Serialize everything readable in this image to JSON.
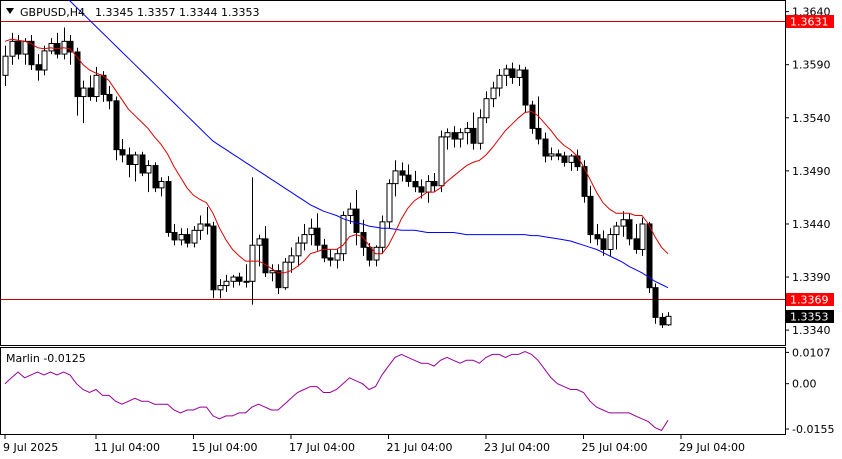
{
  "header": {
    "symbol": "GBPUSD,H4",
    "ohlc": "1.3345 1.3357 1.3344 1.3353"
  },
  "indicator": {
    "label": "Marlin -0.0125"
  },
  "colors": {
    "price_line": "#cc0000",
    "slow_ma": "#0000ff",
    "fast_ma": "#dd0000",
    "oscillator": "#990099",
    "candle": "#000000",
    "tag_red": "#ff0000",
    "tag_black": "#000000"
  },
  "chart_data": [
    {
      "type": "candlestick",
      "title": "GBPUSD,H4",
      "y_ticks": [
        "1.3640",
        "1.3590",
        "1.3540",
        "1.3490",
        "1.3440",
        "1.3390",
        "1.3340"
      ],
      "ylim": [
        1.3326,
        1.365
      ],
      "x_ticks": [
        "9 Jul 2025",
        "11 Jul 04:00",
        "15 Jul 04:00",
        "17 Jul 04:00",
        "21 Jul 04:00",
        "23 Jul 04:00",
        "25 Jul 04:00",
        "29 Jul 04:00"
      ],
      "horizontal_lines": [
        {
          "value": 1.3631,
          "label": "1.3631",
          "color": "red"
        },
        {
          "value": 1.3369,
          "label": "1.3369",
          "color": "red"
        }
      ],
      "current_price": {
        "value": 1.3353,
        "label": "1.3353"
      },
      "candles": [
        [
          1.358,
          1.3608,
          1.357,
          1.3598
        ],
        [
          1.3598,
          1.362,
          1.359,
          1.3612
        ],
        [
          1.3612,
          1.3618,
          1.3595,
          1.36
        ],
        [
          1.36,
          1.3615,
          1.359,
          1.3612
        ],
        [
          1.3612,
          1.3618,
          1.3585,
          1.359
        ],
        [
          1.359,
          1.36,
          1.3575,
          1.3585
        ],
        [
          1.3585,
          1.3608,
          1.358,
          1.3603
        ],
        [
          1.3603,
          1.3615,
          1.36,
          1.361
        ],
        [
          1.361,
          1.362,
          1.3596,
          1.36
        ],
        [
          1.36,
          1.3625,
          1.3595,
          1.3612
        ],
        [
          1.3612,
          1.3618,
          1.359,
          1.3602
        ],
        [
          1.3602,
          1.3606,
          1.3542,
          1.356
        ],
        [
          1.356,
          1.3575,
          1.3535,
          1.3568
        ],
        [
          1.3568,
          1.358,
          1.3556,
          1.356
        ],
        [
          1.356,
          1.3588,
          1.3555,
          1.358
        ],
        [
          1.358,
          1.3584,
          1.3555,
          1.3562
        ],
        [
          1.3562,
          1.357,
          1.3548,
          1.3556
        ],
        [
          1.3556,
          1.356,
          1.35,
          1.351
        ],
        [
          1.351,
          1.352,
          1.3498,
          1.3505
        ],
        [
          1.3505,
          1.3512,
          1.3484,
          1.3496
        ],
        [
          1.3496,
          1.3508,
          1.348,
          1.3505
        ],
        [
          1.3505,
          1.3508,
          1.3485,
          1.3488
        ],
        [
          1.3488,
          1.35,
          1.347,
          1.3495
        ],
        [
          1.3495,
          1.3498,
          1.347,
          1.3474
        ],
        [
          1.3474,
          1.3484,
          1.3466,
          1.348
        ],
        [
          1.348,
          1.3485,
          1.3428,
          1.3432
        ],
        [
          1.3432,
          1.344,
          1.342,
          1.3425
        ],
        [
          1.3425,
          1.3436,
          1.342,
          1.343
        ],
        [
          1.343,
          1.3436,
          1.3418,
          1.3422
        ],
        [
          1.3422,
          1.3438,
          1.3418,
          1.3434
        ],
        [
          1.3434,
          1.3448,
          1.3425,
          1.344
        ],
        [
          1.344,
          1.3456,
          1.343,
          1.3438
        ],
        [
          1.3438,
          1.3442,
          1.337,
          1.3378
        ],
        [
          1.3378,
          1.3388,
          1.337,
          1.3382
        ],
        [
          1.3382,
          1.3392,
          1.3376,
          1.3386
        ],
        [
          1.3386,
          1.3392,
          1.338,
          1.339
        ],
        [
          1.339,
          1.3394,
          1.3382,
          1.3386
        ],
        [
          1.3386,
          1.3402,
          1.338,
          1.3386
        ],
        [
          1.3386,
          1.3484,
          1.3364,
          1.342
        ],
        [
          1.342,
          1.343,
          1.34,
          1.3426
        ],
        [
          1.3426,
          1.3438,
          1.339,
          1.3394
        ],
        [
          1.3394,
          1.3402,
          1.3386,
          1.3396
        ],
        [
          1.3396,
          1.3402,
          1.3374,
          1.338
        ],
        [
          1.338,
          1.3408,
          1.3378,
          1.3404
        ],
        [
          1.3404,
          1.3418,
          1.3394,
          1.341
        ],
        [
          1.341,
          1.3428,
          1.34,
          1.3422
        ],
        [
          1.3422,
          1.344,
          1.3415,
          1.343
        ],
        [
          1.343,
          1.3445,
          1.342,
          1.3436
        ],
        [
          1.3436,
          1.345,
          1.3415,
          1.342
        ],
        [
          1.342,
          1.3426,
          1.3404,
          1.3408
        ],
        [
          1.3408,
          1.3416,
          1.34,
          1.3406
        ],
        [
          1.3406,
          1.3416,
          1.3398,
          1.3412
        ],
        [
          1.3412,
          1.3452,
          1.3405,
          1.3448
        ],
        [
          1.3448,
          1.346,
          1.344,
          1.3454
        ],
        [
          1.3454,
          1.3472,
          1.342,
          1.3432
        ],
        [
          1.3432,
          1.3444,
          1.341,
          1.3418
        ],
        [
          1.3418,
          1.3422,
          1.34,
          1.3406
        ],
        [
          1.3406,
          1.342,
          1.34,
          1.3418
        ],
        [
          1.3418,
          1.3448,
          1.3412,
          1.3442
        ],
        [
          1.3442,
          1.3482,
          1.3436,
          1.3478
        ],
        [
          1.3478,
          1.35,
          1.3466,
          1.349
        ],
        [
          1.349,
          1.3498,
          1.348,
          1.3486
        ],
        [
          1.3486,
          1.3496,
          1.3475,
          1.348
        ],
        [
          1.348,
          1.349,
          1.347,
          1.3475
        ],
        [
          1.3475,
          1.3482,
          1.3464,
          1.347
        ],
        [
          1.347,
          1.3486,
          1.346,
          1.348
        ],
        [
          1.348,
          1.3488,
          1.347,
          1.3476
        ],
        [
          1.3476,
          1.3528,
          1.347,
          1.3522
        ],
        [
          1.3522,
          1.353,
          1.351,
          1.3526
        ],
        [
          1.3526,
          1.3532,
          1.3512,
          1.352
        ],
        [
          1.352,
          1.353,
          1.3512,
          1.3526
        ],
        [
          1.3526,
          1.3536,
          1.3515,
          1.353
        ],
        [
          1.353,
          1.3545,
          1.351,
          1.3516
        ],
        [
          1.3516,
          1.3548,
          1.351,
          1.354
        ],
        [
          1.354,
          1.3565,
          1.3535,
          1.3558
        ],
        [
          1.3558,
          1.3574,
          1.355,
          1.3568
        ],
        [
          1.3568,
          1.3586,
          1.356,
          1.358
        ],
        [
          1.358,
          1.359,
          1.357,
          1.3586
        ],
        [
          1.3586,
          1.3592,
          1.3572,
          1.3578
        ],
        [
          1.3578,
          1.359,
          1.357,
          1.3585
        ],
        [
          1.3585,
          1.3588,
          1.3545,
          1.3552
        ],
        [
          1.3552,
          1.3556,
          1.3525,
          1.353
        ],
        [
          1.353,
          1.356,
          1.3515,
          1.352
        ],
        [
          1.352,
          1.3526,
          1.3498,
          1.3504
        ],
        [
          1.3504,
          1.3512,
          1.35,
          1.3506
        ],
        [
          1.3506,
          1.351,
          1.35,
          1.3504
        ],
        [
          1.3504,
          1.3508,
          1.3494,
          1.3498
        ],
        [
          1.3498,
          1.3506,
          1.349,
          1.3504
        ],
        [
          1.3504,
          1.351,
          1.349,
          1.3494
        ],
        [
          1.3494,
          1.35,
          1.346,
          1.3466
        ],
        [
          1.3466,
          1.3476,
          1.3422,
          1.343
        ],
        [
          1.343,
          1.344,
          1.342,
          1.3426
        ],
        [
          1.3426,
          1.3434,
          1.341,
          1.3416
        ],
        [
          1.3416,
          1.3436,
          1.341,
          1.343
        ],
        [
          1.343,
          1.3442,
          1.3416,
          1.3438
        ],
        [
          1.3438,
          1.3452,
          1.3428,
          1.3444
        ],
        [
          1.3444,
          1.345,
          1.342,
          1.3426
        ],
        [
          1.3426,
          1.344,
          1.3412,
          1.3416
        ],
        [
          1.3416,
          1.3446,
          1.341,
          1.344
        ],
        [
          1.344,
          1.3442,
          1.3375,
          1.338
        ],
        [
          1.338,
          1.3384,
          1.3346,
          1.3352
        ],
        [
          1.3352,
          1.3356,
          1.3342,
          1.3345
        ],
        [
          1.3345,
          1.3357,
          1.3344,
          1.3353
        ]
      ],
      "fast_ma": [
        1.3612,
        1.3614,
        1.3613,
        1.3612,
        1.361,
        1.3606,
        1.3605,
        1.3606,
        1.3605,
        1.3606,
        1.3605,
        1.3598,
        1.359,
        1.3585,
        1.3582,
        1.358,
        1.3575,
        1.3566,
        1.3557,
        1.3548,
        1.3542,
        1.3536,
        1.353,
        1.3522,
        1.3515,
        1.3506,
        1.3494,
        1.3484,
        1.3474,
        1.3467,
        1.3463,
        1.346,
        1.345,
        1.3436,
        1.3425,
        1.3416,
        1.341,
        1.3405,
        1.3405,
        1.3405,
        1.3402,
        1.3398,
        1.3394,
        1.3394,
        1.3396,
        1.34,
        1.3405,
        1.3412,
        1.3414,
        1.3416,
        1.3416,
        1.3416,
        1.342,
        1.3428,
        1.343,
        1.3428,
        1.342,
        1.3412,
        1.3412,
        1.342,
        1.3432,
        1.3445,
        1.3455,
        1.3462,
        1.3466,
        1.347,
        1.347,
        1.3474,
        1.348,
        1.3485,
        1.349,
        1.3495,
        1.3498,
        1.35,
        1.3505,
        1.3512,
        1.352,
        1.3528,
        1.3534,
        1.354,
        1.3545,
        1.3546,
        1.3542,
        1.3535,
        1.3528,
        1.352,
        1.3514,
        1.351,
        1.3504,
        1.3494,
        1.3482,
        1.347,
        1.346,
        1.3454,
        1.345,
        1.345,
        1.345,
        1.3448,
        1.3448,
        1.344,
        1.3428,
        1.3418,
        1.3412
      ],
      "slow_ma": [
        1.368,
        1.3678,
        1.3676,
        1.3674,
        1.3671,
        1.3668,
        1.3665,
        1.3662,
        1.3658,
        1.3654,
        1.365,
        1.3644,
        1.3638,
        1.3632,
        1.3626,
        1.362,
        1.3614,
        1.3608,
        1.3602,
        1.3596,
        1.359,
        1.3584,
        1.3578,
        1.3572,
        1.3566,
        1.356,
        1.3554,
        1.3548,
        1.3542,
        1.3536,
        1.353,
        1.3524,
        1.3518,
        1.3514,
        1.351,
        1.3506,
        1.3502,
        1.3498,
        1.3494,
        1.349,
        1.3486,
        1.3482,
        1.3478,
        1.3474,
        1.347,
        1.3466,
        1.3462,
        1.3458,
        1.3455,
        1.3452,
        1.345,
        1.3448,
        1.3445,
        1.3443,
        1.3441,
        1.344,
        1.3438,
        1.3437,
        1.3436,
        1.3436,
        1.3435,
        1.3434,
        1.3434,
        1.3434,
        1.3433,
        1.3432,
        1.3432,
        1.3432,
        1.3432,
        1.3432,
        1.3431,
        1.343,
        1.343,
        1.343,
        1.343,
        1.343,
        1.343,
        1.343,
        1.343,
        1.343,
        1.343,
        1.3429,
        1.3429,
        1.3428,
        1.3427,
        1.3426,
        1.3425,
        1.3424,
        1.3422,
        1.342,
        1.3418,
        1.3416,
        1.3413,
        1.341,
        1.3407,
        1.3404,
        1.34,
        1.3397,
        1.3394,
        1.339,
        1.3386,
        1.3383,
        1.338
      ],
      "oscillator": {
        "name": "Marlin",
        "value_label": "-0.0125",
        "y_ticks": [
          "0.0107",
          "0.00",
          "-0.0155"
        ],
        "ylim": [
          -0.0172,
          0.0122
        ],
        "values": [
          0.0,
          0.002,
          0.004,
          0.002,
          0.003,
          0.004,
          0.003,
          0.004,
          0.003,
          0.004,
          0.003,
          0.0,
          -0.002,
          -0.003,
          -0.002,
          -0.004,
          -0.004,
          -0.006,
          -0.007,
          -0.006,
          -0.005,
          -0.006,
          -0.006,
          -0.007,
          -0.007,
          -0.007,
          -0.009,
          -0.01,
          -0.009,
          -0.009,
          -0.008,
          -0.008,
          -0.011,
          -0.012,
          -0.011,
          -0.011,
          -0.01,
          -0.01,
          -0.008,
          -0.007,
          -0.008,
          -0.009,
          -0.009,
          -0.007,
          -0.005,
          -0.003,
          -0.002,
          -0.001,
          -0.001,
          -0.003,
          -0.003,
          -0.002,
          0.0,
          0.002,
          0.001,
          0.0,
          -0.002,
          -0.001,
          0.003,
          0.006,
          0.009,
          0.01,
          0.009,
          0.008,
          0.007,
          0.007,
          0.006,
          0.008,
          0.009,
          0.008,
          0.007,
          0.008,
          0.008,
          0.007,
          0.009,
          0.01,
          0.01,
          0.009,
          0.01,
          0.01,
          0.011,
          0.01,
          0.008,
          0.005,
          0.002,
          0.0,
          -0.001,
          -0.002,
          -0.002,
          -0.003,
          -0.006,
          -0.008,
          -0.009,
          -0.01,
          -0.01,
          -0.01,
          -0.01,
          -0.011,
          -0.012,
          -0.013,
          -0.015,
          -0.016,
          -0.0125
        ]
      }
    }
  ]
}
